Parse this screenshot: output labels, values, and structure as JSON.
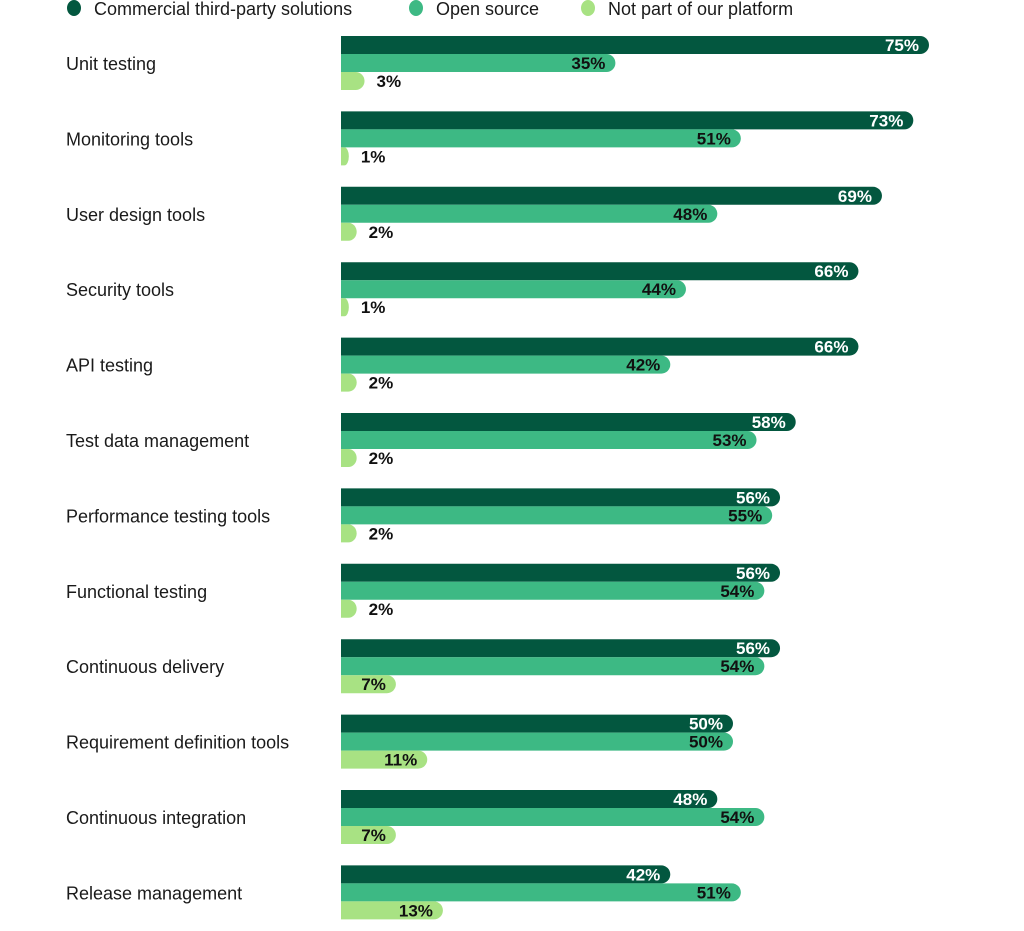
{
  "chart_data": {
    "type": "bar",
    "orientation": "horizontal",
    "title": "",
    "xlabel": "",
    "ylabel": "",
    "xlim": [
      0,
      100
    ],
    "grid": false,
    "legend_position": "top-left",
    "value_format": "{v}%",
    "categories": [
      "Unit testing",
      "Monitoring tools",
      "User design tools",
      "Security tools",
      "API testing",
      "Test data management",
      "Performance testing tools",
      "Functional testing",
      "Continuous delivery",
      "Requirement definition tools",
      "Continuous integration",
      "Release management"
    ],
    "series": [
      {
        "name": "Commercial third-party solutions",
        "color": "#03573F",
        "label_color": "#FFFFFF",
        "values": [
          75,
          73,
          69,
          66,
          66,
          58,
          56,
          56,
          56,
          50,
          48,
          42
        ]
      },
      {
        "name": "Open source",
        "color": "#3DB984",
        "label_color": "#111111",
        "values": [
          35,
          51,
          48,
          44,
          42,
          53,
          55,
          54,
          54,
          50,
          54,
          51
        ]
      },
      {
        "name": "Not part of our platform",
        "color": "#A8E283",
        "label_color": "#111111",
        "values": [
          3,
          1,
          2,
          1,
          2,
          2,
          2,
          2,
          7,
          11,
          7,
          13
        ]
      }
    ]
  }
}
